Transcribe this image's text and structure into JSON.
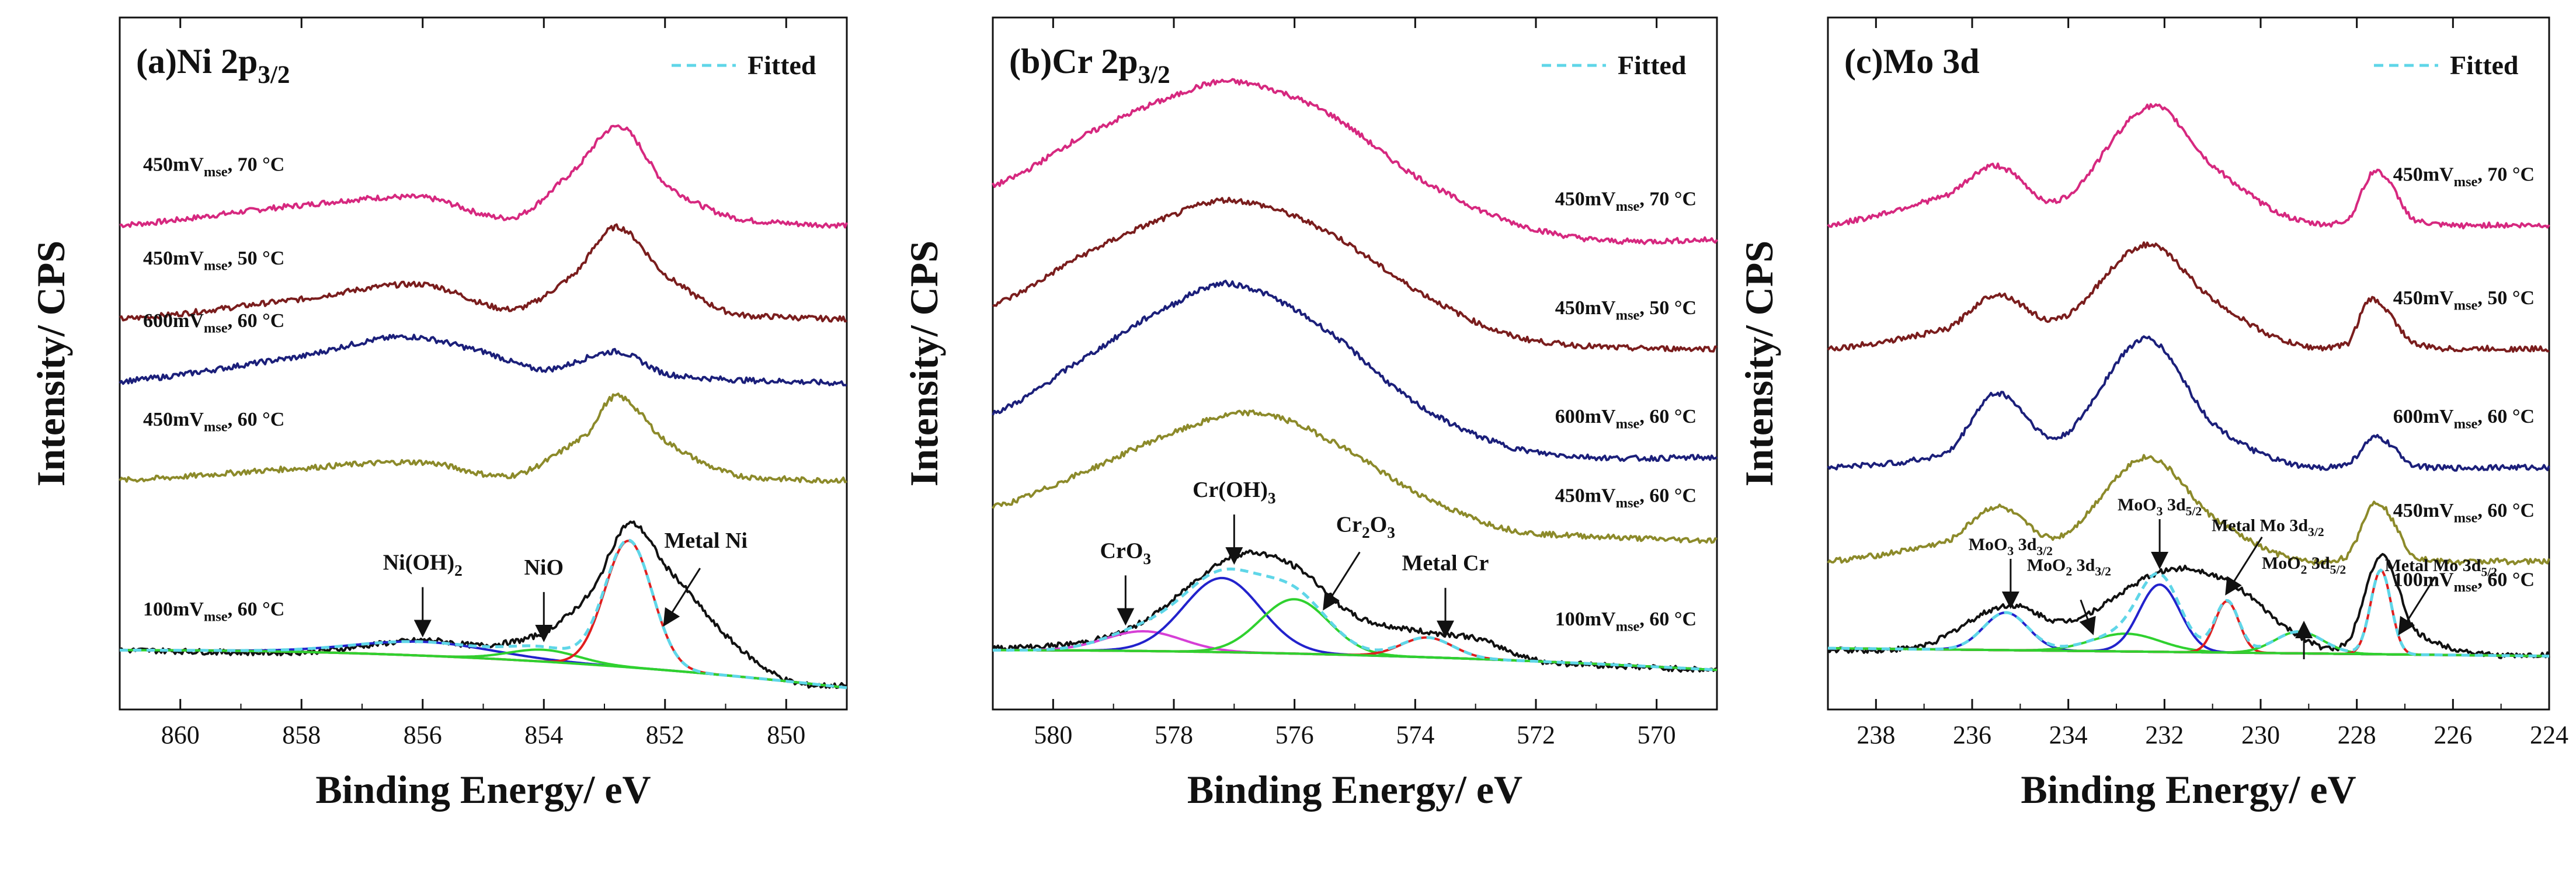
{
  "figure": {
    "colors": {
      "pink": "#d6287f",
      "maroon": "#7a1d1d",
      "navy": "#1b1f7a",
      "olive": "#8c8a2a",
      "black": "#111111",
      "fitted": "#5fd6e8",
      "fit_red": "#e01e1e",
      "fit_blue": "#2222cc",
      "fit_green": "#2fd12f",
      "fit_magenta": "#d63fd6"
    }
  },
  "chart_data": [
    {
      "type": "line",
      "panel": "(a)",
      "title": "(a)Ni 2p3/2",
      "xlabel": "Binding Energy/ eV",
      "ylabel": "Intensity/ CPS",
      "xlim": [
        861.0,
        849.0
      ],
      "xticks": [
        860,
        858,
        856,
        854,
        852,
        850
      ],
      "legend": "Fitted",
      "legend_position": "top-right",
      "series": [
        {
          "name": "450mVmse, 70 °C",
          "color": "pink",
          "baseline": 4.3,
          "x": [
            861.0,
            858.0,
            856.0,
            854.5,
            853.5,
            852.75,
            852.0,
            851.0,
            850.0,
            849.0
          ],
          "y": [
            0.0,
            0.2,
            0.28,
            0.08,
            0.55,
            1.0,
            0.42,
            0.1,
            0.02,
            0.0
          ]
        },
        {
          "name": "450mVmse, 50 °C",
          "color": "maroon",
          "baseline": 3.35,
          "x": [
            861.0,
            858.0,
            856.0,
            854.5,
            853.5,
            852.8,
            852.0,
            851.0,
            850.0,
            849.0
          ],
          "y": [
            0.0,
            0.2,
            0.35,
            0.1,
            0.45,
            0.93,
            0.45,
            0.08,
            0.02,
            0.0
          ]
        },
        {
          "name": "600mVmse, 60 °C",
          "color": "navy",
          "baseline": 2.72,
          "x": [
            861.0,
            858.0,
            856.3,
            855.0,
            854.0,
            852.8,
            852.0,
            851.0,
            850.0,
            849.0
          ],
          "y": [
            0.0,
            0.25,
            0.45,
            0.3,
            0.12,
            0.3,
            0.08,
            0.02,
            0.0,
            -0.02
          ]
        },
        {
          "name": "450mVmse, 60 °C",
          "color": "olive",
          "baseline": 1.72,
          "x": [
            861.0,
            858.0,
            856.0,
            854.5,
            853.3,
            852.8,
            852.0,
            851.0,
            850.0,
            849.0
          ],
          "y": [
            0.0,
            0.12,
            0.18,
            0.05,
            0.45,
            0.85,
            0.4,
            0.08,
            0.01,
            0.0
          ]
        },
        {
          "name": "100mVmse, 60 °C",
          "color": "black",
          "baseline": 0.0,
          "x": [
            861.0,
            858.0,
            856.0,
            855.0,
            854.0,
            853.2,
            852.6,
            852.0,
            851.0,
            850.0,
            849.0
          ],
          "y": [
            0.0,
            -0.02,
            0.1,
            0.05,
            0.18,
            0.6,
            1.28,
            0.85,
            0.15,
            -0.3,
            -0.36
          ]
        }
      ],
      "components": [
        {
          "label": "Ni(OH)2",
          "color": "fit_blue",
          "center": 856.0,
          "height": 0.14,
          "width": 1.6
        },
        {
          "label": "NiO",
          "color": "fit_green",
          "center": 854.0,
          "height": 0.12,
          "width": 0.8
        },
        {
          "label": "Metal Ni",
          "color": "fit_red",
          "center": 852.6,
          "height": 1.28,
          "width": 0.55
        }
      ],
      "annotations": [
        {
          "text": "Ni(OH)2",
          "x": 856.0,
          "arrow": "down"
        },
        {
          "text": "NiO",
          "x": 854.0,
          "arrow": "down"
        },
        {
          "text": "Metal Ni",
          "x": 852.0,
          "arrow": "down-left"
        }
      ]
    },
    {
      "type": "line",
      "panel": "(b)",
      "title": "(b)Cr 2p3/2",
      "xlabel": "Binding Energy/ eV",
      "ylabel": "Intensity/ CPS",
      "xlim": [
        581.0,
        569.0
      ],
      "xticks": [
        580,
        578,
        576,
        574,
        572,
        570
      ],
      "legend": "Fitted",
      "legend_position": "top-right",
      "series": [
        {
          "name": "450mVmse, 70 °C",
          "color": "pink",
          "baseline": 4.15,
          "x": [
            581.0,
            579.5,
            578.0,
            577.0,
            575.5,
            574.0,
            572.5,
            571.0,
            569.0
          ],
          "y": [
            0.55,
            1.05,
            1.45,
            1.6,
            1.3,
            0.65,
            0.2,
            0.0,
            0.0
          ]
        },
        {
          "name": "450mVmse, 50 °C",
          "color": "maroon",
          "baseline": 3.05,
          "x": [
            581.0,
            579.5,
            578.0,
            577.0,
            575.5,
            574.0,
            572.5,
            571.0,
            569.0
          ],
          "y": [
            0.45,
            0.95,
            1.35,
            1.5,
            1.2,
            0.6,
            0.15,
            0.02,
            0.0
          ]
        },
        {
          "name": "600mVmse, 60 °C",
          "color": "navy",
          "baseline": 1.95,
          "x": [
            581.0,
            579.5,
            578.0,
            577.0,
            575.5,
            574.0,
            572.5,
            571.0,
            569.0
          ],
          "y": [
            0.45,
            1.0,
            1.55,
            1.75,
            1.3,
            0.55,
            0.12,
            0.0,
            0.0
          ]
        },
        {
          "name": "450mVmse, 60 °C",
          "color": "olive",
          "baseline": 1.15,
          "x": [
            581.0,
            579.5,
            578.0,
            576.7,
            575.5,
            574.0,
            572.5,
            571.0,
            569.0
          ],
          "y": [
            0.3,
            0.65,
            1.05,
            1.25,
            1.0,
            0.45,
            0.08,
            0.0,
            -0.04
          ]
        },
        {
          "name": "100mVmse, 60 °C",
          "color": "black",
          "baseline": 0.0,
          "x": [
            581.0,
            579.5,
            578.5,
            577.0,
            576.0,
            575.0,
            574.0,
            573.0,
            572.0,
            571.0,
            569.0
          ],
          "y": [
            0.02,
            0.08,
            0.3,
            0.95,
            0.85,
            0.35,
            0.2,
            0.12,
            -0.1,
            -0.15,
            -0.2
          ]
        }
      ],
      "components": [
        {
          "label": "CrO3",
          "color": "fit_magenta",
          "center": 578.5,
          "height": 0.2,
          "width": 0.9
        },
        {
          "label": "Cr(OH)3",
          "color": "fit_blue",
          "center": 577.2,
          "height": 0.75,
          "width": 0.9
        },
        {
          "label": "Cr2O3",
          "color": "fit_green",
          "center": 576.0,
          "height": 0.55,
          "width": 0.8
        },
        {
          "label": "Metal Cr",
          "color": "fit_red",
          "center": 573.8,
          "height": 0.2,
          "width": 0.6
        }
      ],
      "annotations": [
        {
          "text": "CrO3",
          "x": 578.8,
          "arrow": "down"
        },
        {
          "text": "Cr(OH)3",
          "x": 577.0,
          "arrow": "down"
        },
        {
          "text": "Cr2O3",
          "x": 575.5,
          "arrow": "down-left"
        },
        {
          "text": "Metal Cr",
          "x": 573.5,
          "arrow": "down"
        }
      ]
    },
    {
      "type": "line",
      "panel": "(c)",
      "title": "(c)Mo 3d",
      "xlabel": "Binding Energy/ eV",
      "ylabel": "Intensity/ CPS",
      "xlim": [
        239.0,
        224.0
      ],
      "xticks": [
        238,
        236,
        234,
        232,
        230,
        228,
        226,
        224
      ],
      "legend": "Fitted",
      "legend_position": "top-right",
      "series": [
        {
          "name": "450mVmse, 70 °C",
          "color": "pink",
          "baseline": 4.3,
          "x": [
            239.0,
            236.5,
            235.5,
            234.2,
            232.3,
            231.0,
            229.5,
            228.2,
            227.6,
            226.8,
            225.0,
            224.0
          ],
          "y": [
            0.0,
            0.3,
            0.6,
            0.25,
            1.2,
            0.6,
            0.1,
            0.05,
            0.55,
            0.05,
            0.0,
            0.0
          ]
        },
        {
          "name": "450mVmse, 50 °C",
          "color": "maroon",
          "baseline": 3.05,
          "x": [
            239.0,
            236.5,
            235.5,
            234.2,
            232.4,
            231.0,
            229.5,
            228.2,
            227.7,
            226.8,
            225.0,
            224.0
          ],
          "y": [
            0.0,
            0.2,
            0.55,
            0.3,
            1.05,
            0.5,
            0.08,
            0.05,
            0.5,
            0.05,
            0.0,
            0.0
          ]
        },
        {
          "name": "600mVmse, 60 °C",
          "color": "navy",
          "baseline": 1.85,
          "x": [
            239.0,
            236.5,
            235.5,
            234.2,
            232.4,
            231.0,
            229.5,
            228.2,
            227.6,
            226.8,
            225.0,
            224.0
          ],
          "y": [
            0.0,
            0.15,
            0.75,
            0.3,
            1.3,
            0.45,
            0.05,
            0.03,
            0.3,
            0.02,
            0.0,
            0.0
          ]
        },
        {
          "name": "450mVmse, 60 °C",
          "color": "olive",
          "baseline": 0.9,
          "x": [
            239.0,
            236.5,
            235.5,
            234.2,
            232.4,
            231.0,
            229.5,
            228.2,
            227.6,
            226.8,
            225.0,
            224.0
          ],
          "y": [
            0.0,
            0.2,
            0.55,
            0.25,
            1.05,
            0.45,
            0.05,
            0.05,
            0.6,
            0.05,
            0.0,
            0.0
          ]
        },
        {
          "name": "100mVmse, 60 °C",
          "color": "black",
          "baseline": 0.0,
          "x": [
            239.0,
            237.0,
            235.3,
            234.0,
            232.0,
            230.7,
            229.2,
            228.2,
            227.5,
            226.8,
            225.5,
            224.0
          ],
          "y": [
            0.0,
            0.05,
            0.45,
            0.3,
            0.8,
            0.7,
            0.15,
            0.08,
            0.95,
            0.2,
            -0.03,
            -0.05
          ]
        }
      ],
      "components": [
        {
          "label": "MoO3 3d3/2",
          "color": "fit_blue",
          "center": 235.3,
          "height": 0.38,
          "width": 0.65
        },
        {
          "label": "MoO2 3d3/2",
          "color": "fit_green",
          "center": 232.8,
          "height": 0.18,
          "width": 1.0
        },
        {
          "label": "MoO3 3d5/2",
          "color": "fit_blue",
          "center": 232.1,
          "height": 0.68,
          "width": 0.6
        },
        {
          "label": "Metal Mo 3d3/2",
          "color": "fit_red",
          "center": 230.7,
          "height": 0.52,
          "width": 0.35
        },
        {
          "label": "MoO2 3d5/2",
          "color": "fit_green",
          "center": 229.2,
          "height": 0.22,
          "width": 0.7
        },
        {
          "label": "Metal Mo 3d5/2",
          "color": "fit_red",
          "center": 227.5,
          "height": 0.85,
          "width": 0.3
        }
      ],
      "annotations": [
        {
          "text": "MoO3 3d3/2",
          "x": 235.2,
          "arrow": "down"
        },
        {
          "text": "MoO2 3d3/2",
          "x": 233.5,
          "arrow": "down-right"
        },
        {
          "text": "MoO3 3d5/2",
          "x": 232.1,
          "arrow": "down"
        },
        {
          "text": "Metal Mo 3d3/2",
          "x": 230.7,
          "arrow": "down-left"
        },
        {
          "text": "MoO2 3d5/2",
          "x": 229.1,
          "arrow": "up"
        },
        {
          "text": "Metal Mo 3d5/2",
          "x": 227.1,
          "arrow": "down-left"
        }
      ]
    }
  ]
}
